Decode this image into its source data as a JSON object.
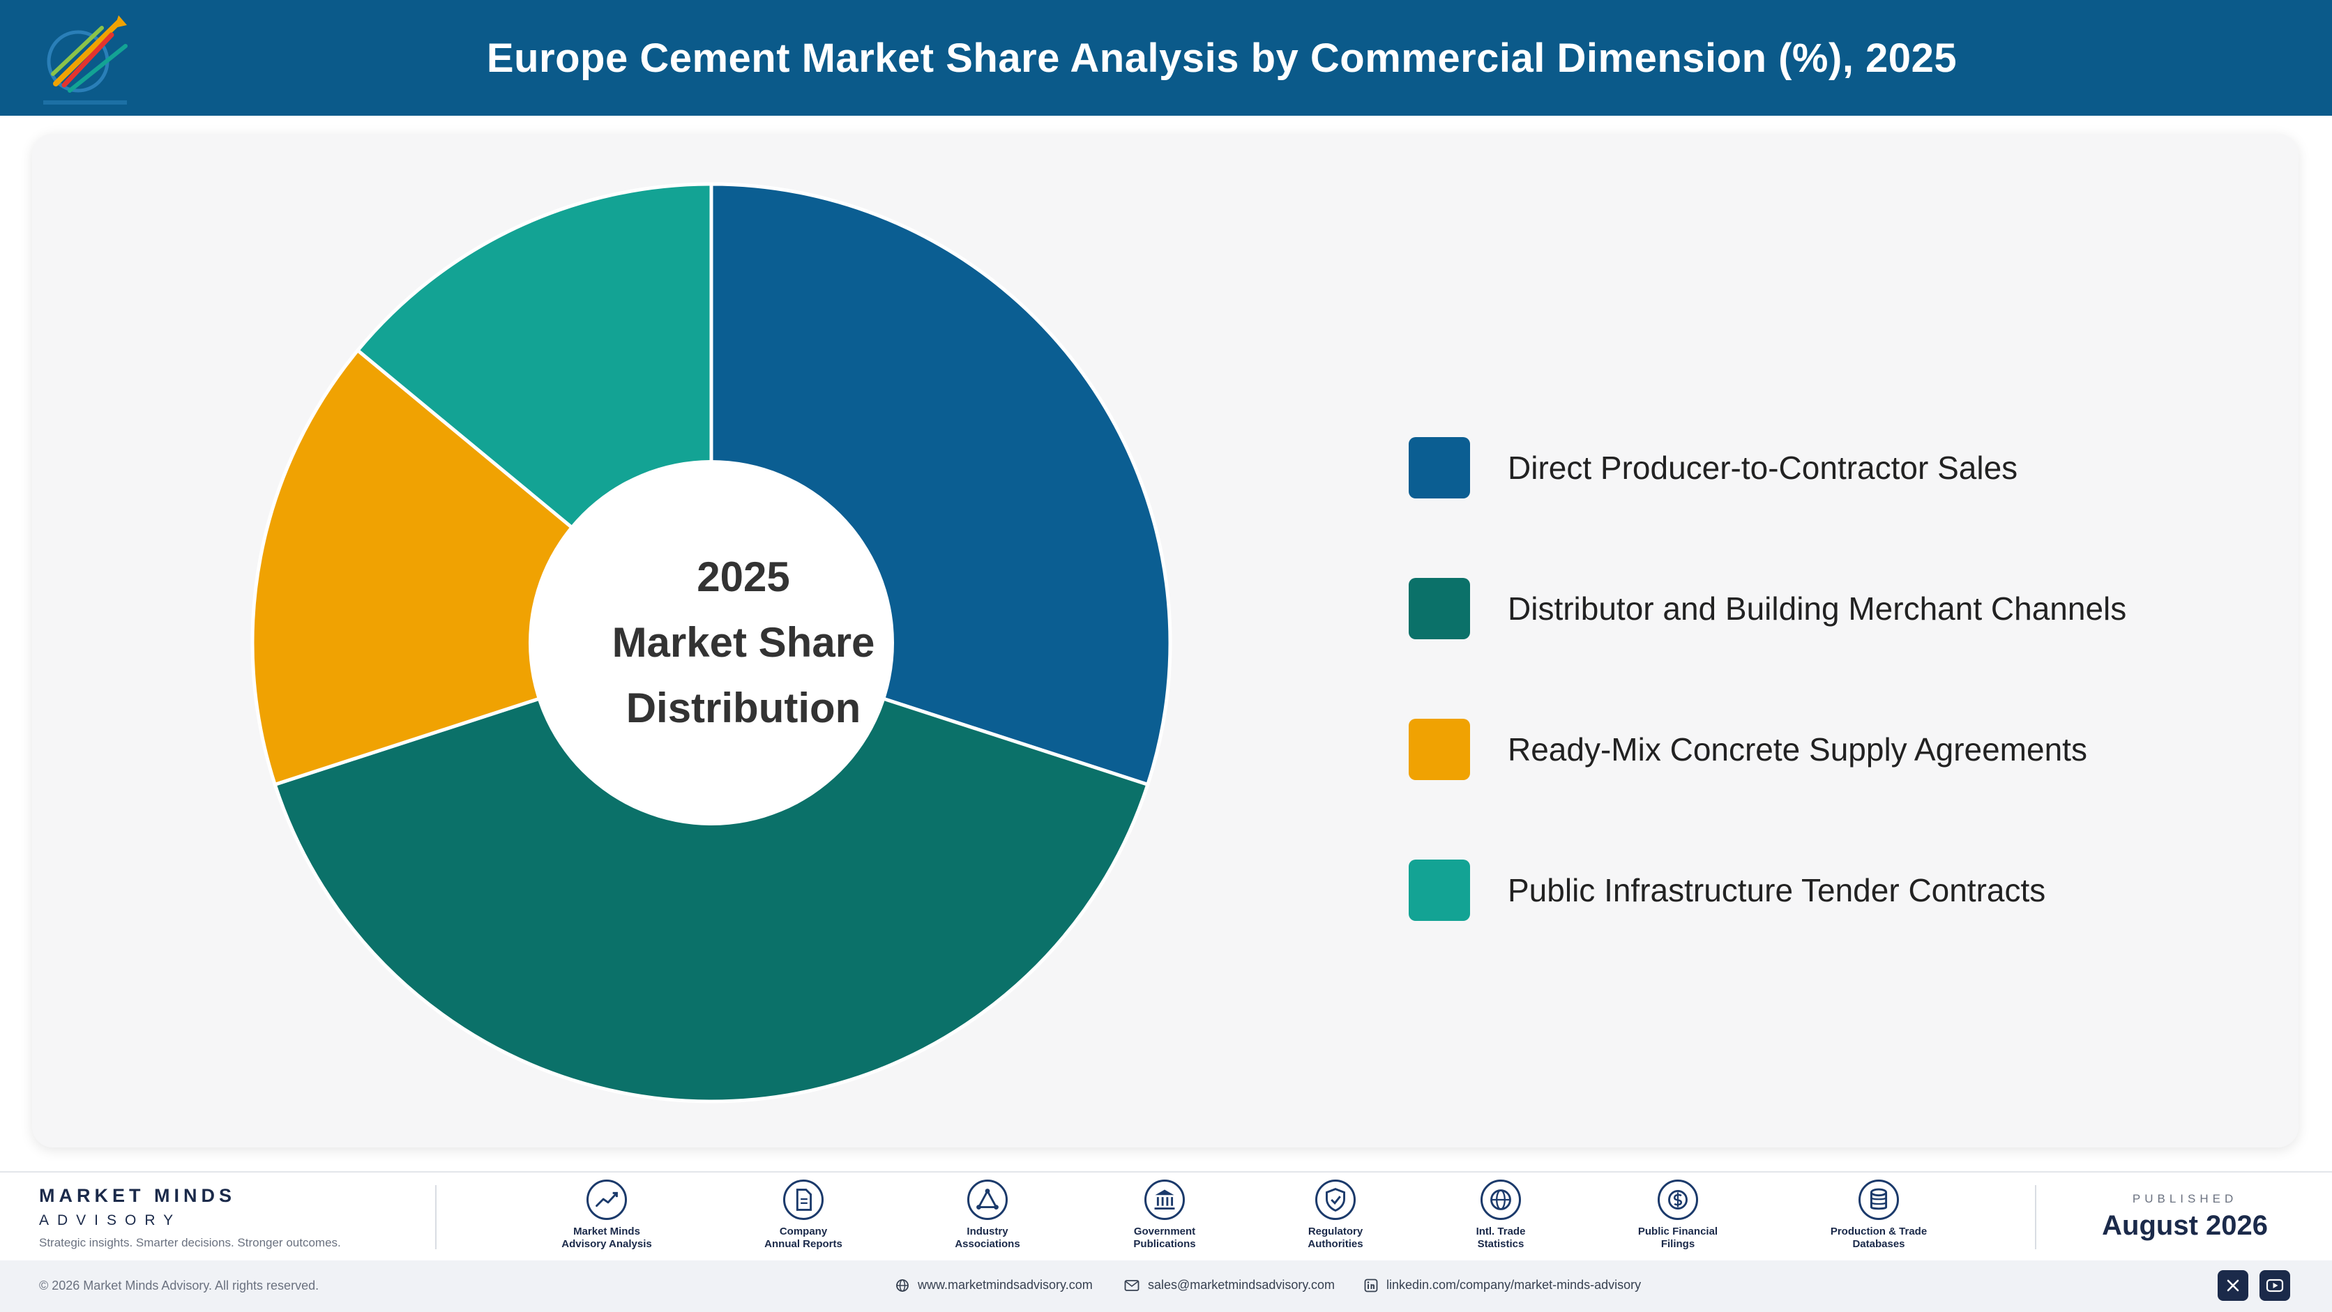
{
  "header": {
    "title": "Europe Cement Market Share Analysis by Commercial Dimension (%), 2025",
    "logo_icon": "chart-arrows-logo"
  },
  "chart_data": {
    "type": "pie",
    "variant": "donut",
    "title": "Europe Cement Market Share Analysis by Commercial Dimension (%), 2025",
    "center_label": [
      "2025",
      "Market Share",
      "Distribution"
    ],
    "categories": [
      "Direct Producer-to-Contractor Sales",
      "Distributor and Building Merchant Channels",
      "Ready-Mix Concrete Supply Agreements",
      "Public Infrastructure Tender Contracts"
    ],
    "values": [
      30,
      40,
      16,
      14
    ],
    "colors": [
      "#0b5e92",
      "#0b7169",
      "#f0a202",
      "#13a394"
    ],
    "legend_position": "right"
  },
  "footer": {
    "brand_name": "MARKET MINDS",
    "brand_sub": "ADVISORY",
    "brand_tagline": "Strategic insights. Smarter decisions. Stronger outcomes.",
    "sources": [
      {
        "label": "Market Minds\nAdvisory Analysis",
        "icon": "trend-line-icon"
      },
      {
        "label": "Company\nAnnual Reports",
        "icon": "document-icon"
      },
      {
        "label": "Industry\nAssociations",
        "icon": "network-icon"
      },
      {
        "label": "Government\nPublications",
        "icon": "government-building-icon"
      },
      {
        "label": "Regulatory\nAuthorities",
        "icon": "shield-check-icon"
      },
      {
        "label": "Intl. Trade\nStatistics",
        "icon": "globe-icon"
      },
      {
        "label": "Public Financial\nFilings",
        "icon": "dollar-coin-icon"
      },
      {
        "label": "Production & Trade\nDatabases",
        "icon": "database-icon"
      }
    ],
    "published_label": "PUBLISHED",
    "published_date": "August 2026",
    "copyright": "© 2026 Market Minds Advisory. All rights reserved.",
    "website": "www.marketmindsadvisory.com",
    "email": "sales@marketmindsadvisory.com",
    "linkedin": "linkedin.com/company/market-minds-advisory"
  }
}
